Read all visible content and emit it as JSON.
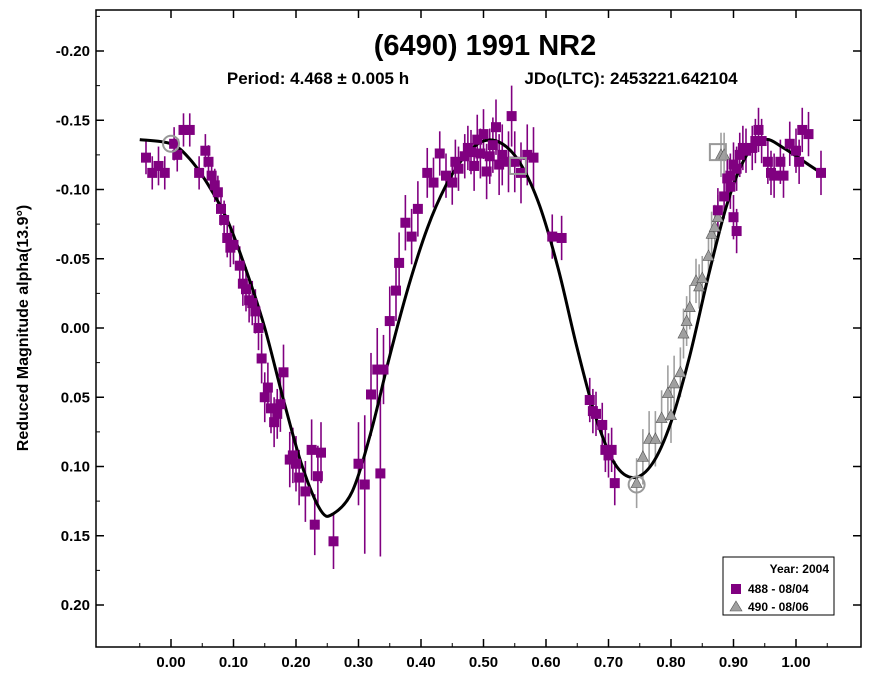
{
  "chart_data": {
    "type": "scatter",
    "title": "(6490) 1991 NR2",
    "subtitle_period": "Period: 4.468 ± 0.005 h",
    "subtitle_epoch": "JDo(LTC): 2453221.642104",
    "ylabel": "Reduced Magnitude alpha(13.9°)",
    "xlabel": "",
    "xlim": [
      -0.1,
      1.1
    ],
    "ylim": [
      0.25,
      -0.25
    ],
    "x_ticks": [
      "0.00",
      "0.10",
      "0.20",
      "0.30",
      "0.40",
      "0.50",
      "0.60",
      "0.70",
      "0.80",
      "0.90",
      "1.00"
    ],
    "y_ticks": [
      "-0.20",
      "-0.15",
      "-0.10",
      "-0.05",
      "0.00",
      "0.05",
      "0.10",
      "0.15",
      "0.20"
    ],
    "y_tick_values": [
      -0.2,
      -0.15,
      -0.1,
      -0.05,
      0.0,
      0.05,
      0.1,
      0.15,
      0.2
    ],
    "x_tick_values": [
      0.0,
      0.1,
      0.2,
      0.3,
      0.4,
      0.5,
      0.6,
      0.7,
      0.8,
      0.9,
      1.0
    ],
    "legend": {
      "title": "Year: 2004",
      "position": "bottom-right",
      "entries": [
        {
          "label": "488 - 08/04",
          "marker": "square",
          "color": "#800080"
        },
        {
          "label": "490 - 08/06",
          "marker": "triangle",
          "color": "#a0a0a0"
        }
      ]
    },
    "fit_curve": {
      "color": "#000000",
      "points": [
        [
          -0.05,
          -0.136
        ],
        [
          0.0,
          -0.133
        ],
        [
          0.03,
          -0.122
        ],
        [
          0.06,
          -0.103
        ],
        [
          0.09,
          -0.078
        ],
        [
          0.12,
          -0.042
        ],
        [
          0.15,
          0.0
        ],
        [
          0.18,
          0.052
        ],
        [
          0.21,
          0.1
        ],
        [
          0.24,
          0.132
        ],
        [
          0.26,
          0.134
        ],
        [
          0.29,
          0.118
        ],
        [
          0.32,
          0.075
        ],
        [
          0.35,
          0.02
        ],
        [
          0.38,
          -0.03
        ],
        [
          0.41,
          -0.072
        ],
        [
          0.44,
          -0.103
        ],
        [
          0.47,
          -0.124
        ],
        [
          0.5,
          -0.135
        ],
        [
          0.53,
          -0.133
        ],
        [
          0.56,
          -0.118
        ],
        [
          0.59,
          -0.088
        ],
        [
          0.62,
          -0.042
        ],
        [
          0.65,
          0.015
        ],
        [
          0.68,
          0.065
        ],
        [
          0.71,
          0.098
        ],
        [
          0.74,
          0.108
        ],
        [
          0.77,
          0.098
        ],
        [
          0.8,
          0.068
        ],
        [
          0.83,
          0.02
        ],
        [
          0.86,
          -0.038
        ],
        [
          0.89,
          -0.09
        ],
        [
          0.92,
          -0.124
        ],
        [
          0.95,
          -0.136
        ],
        [
          0.98,
          -0.13
        ],
        [
          1.02,
          -0.118
        ],
        [
          1.04,
          -0.112
        ]
      ]
    },
    "series": [
      {
        "name": "488 - 08/04",
        "marker": "square",
        "color": "#800080",
        "points": [
          [
            -0.04,
            -0.123,
            0.012
          ],
          [
            -0.03,
            -0.112,
            0.012
          ],
          [
            -0.02,
            -0.117,
            0.014
          ],
          [
            -0.01,
            -0.112,
            0.012
          ],
          [
            0.005,
            -0.133,
            0.012
          ],
          [
            0.01,
            -0.125,
            0.012
          ],
          [
            0.02,
            -0.143,
            0.012
          ],
          [
            0.03,
            -0.143,
            0.012
          ],
          [
            0.045,
            -0.112,
            0.012
          ],
          [
            0.055,
            -0.128,
            0.012
          ],
          [
            0.06,
            -0.12,
            0.012
          ],
          [
            0.065,
            -0.11,
            0.012
          ],
          [
            0.07,
            -0.103,
            0.012
          ],
          [
            0.075,
            -0.098,
            0.012
          ],
          [
            0.08,
            -0.086,
            0.012
          ],
          [
            0.085,
            -0.078,
            0.014
          ],
          [
            0.09,
            -0.065,
            0.014
          ],
          [
            0.095,
            -0.058,
            0.014
          ],
          [
            0.1,
            -0.06,
            0.014
          ],
          [
            0.11,
            -0.045,
            0.014
          ],
          [
            0.115,
            -0.032,
            0.016
          ],
          [
            0.12,
            -0.028,
            0.016
          ],
          [
            0.125,
            -0.02,
            0.016
          ],
          [
            0.13,
            -0.018,
            0.016
          ],
          [
            0.135,
            -0.012,
            0.016
          ],
          [
            0.14,
            0.0,
            0.016
          ],
          [
            0.145,
            0.022,
            0.018
          ],
          [
            0.15,
            0.05,
            0.018
          ],
          [
            0.155,
            0.043,
            0.018
          ],
          [
            0.16,
            0.058,
            0.018
          ],
          [
            0.165,
            0.068,
            0.018
          ],
          [
            0.17,
            0.062,
            0.018
          ],
          [
            0.175,
            0.055,
            0.02
          ],
          [
            0.18,
            0.032,
            0.02
          ],
          [
            0.19,
            0.095,
            0.02
          ],
          [
            0.195,
            0.092,
            0.02
          ],
          [
            0.2,
            0.098,
            0.02
          ],
          [
            0.205,
            0.108,
            0.02
          ],
          [
            0.215,
            0.118,
            0.022
          ],
          [
            0.225,
            0.088,
            0.022
          ],
          [
            0.23,
            0.142,
            0.022
          ],
          [
            0.235,
            0.107,
            0.022
          ],
          [
            0.24,
            0.09,
            0.022
          ],
          [
            0.26,
            0.154,
            0.02
          ],
          [
            0.3,
            0.098,
            0.03
          ],
          [
            0.31,
            0.113,
            0.05
          ],
          [
            0.32,
            0.048,
            0.03
          ],
          [
            0.33,
            0.03,
            0.03
          ],
          [
            0.335,
            0.105,
            0.06
          ],
          [
            0.34,
            0.03,
            0.025
          ],
          [
            0.35,
            -0.005,
            0.025
          ],
          [
            0.36,
            -0.027,
            0.022
          ],
          [
            0.365,
            -0.047,
            0.022
          ],
          [
            0.375,
            -0.076,
            0.02
          ],
          [
            0.385,
            -0.066,
            0.02
          ],
          [
            0.395,
            -0.086,
            0.02
          ],
          [
            0.41,
            -0.112,
            0.018
          ],
          [
            0.42,
            -0.105,
            0.018
          ],
          [
            0.43,
            -0.126,
            0.016
          ],
          [
            0.44,
            -0.11,
            0.016
          ],
          [
            0.45,
            -0.105,
            0.016
          ],
          [
            0.455,
            -0.12,
            0.016
          ],
          [
            0.46,
            -0.115,
            0.016
          ],
          [
            0.47,
            -0.124,
            0.016
          ],
          [
            0.475,
            -0.13,
            0.016
          ],
          [
            0.48,
            -0.127,
            0.016
          ],
          [
            0.485,
            -0.117,
            0.018
          ],
          [
            0.49,
            -0.136,
            0.018
          ],
          [
            0.495,
            -0.126,
            0.018
          ],
          [
            0.5,
            -0.14,
            0.018
          ],
          [
            0.505,
            -0.113,
            0.02
          ],
          [
            0.51,
            -0.124,
            0.02
          ],
          [
            0.515,
            -0.132,
            0.02
          ],
          [
            0.52,
            -0.145,
            0.02
          ],
          [
            0.525,
            -0.118,
            0.022
          ],
          [
            0.53,
            -0.125,
            0.022
          ],
          [
            0.54,
            -0.12,
            0.022
          ],
          [
            0.545,
            -0.153,
            0.022
          ],
          [
            0.55,
            -0.12,
            0.022
          ],
          [
            0.56,
            -0.112,
            0.022
          ],
          [
            0.57,
            -0.125,
            0.022
          ],
          [
            0.58,
            -0.123,
            0.022
          ],
          [
            0.61,
            -0.066,
            0.016
          ],
          [
            0.625,
            -0.065,
            0.016
          ],
          [
            0.67,
            0.052,
            0.016
          ],
          [
            0.675,
            0.06,
            0.016
          ],
          [
            0.68,
            0.062,
            0.016
          ],
          [
            0.69,
            0.07,
            0.016
          ],
          [
            0.695,
            0.088,
            0.016
          ],
          [
            0.7,
            0.092,
            0.016
          ],
          [
            0.705,
            0.088,
            0.016
          ],
          [
            0.71,
            0.112,
            0.016
          ]
        ]
      },
      {
        "name": "490 - 08/06",
        "marker": "triangle",
        "color": "#a0a0a0",
        "points": [
          [
            0.745,
            0.112,
            0.018
          ],
          [
            0.755,
            0.093,
            0.02
          ],
          [
            0.765,
            0.08,
            0.02
          ],
          [
            0.775,
            0.08,
            0.02
          ],
          [
            0.785,
            0.065,
            0.02
          ],
          [
            0.795,
            0.047,
            0.02
          ],
          [
            0.8,
            0.063,
            0.02
          ],
          [
            0.805,
            0.04,
            0.02
          ],
          [
            0.815,
            0.032,
            0.018
          ],
          [
            0.82,
            0.004,
            0.018
          ],
          [
            0.825,
            -0.005,
            0.018
          ],
          [
            0.83,
            -0.015,
            0.016
          ],
          [
            0.84,
            -0.034,
            0.016
          ],
          [
            0.845,
            -0.03,
            0.016
          ],
          [
            0.85,
            -0.036,
            0.016
          ],
          [
            0.86,
            -0.052,
            0.016
          ],
          [
            0.865,
            -0.068,
            0.016
          ],
          [
            0.87,
            -0.073,
            0.016
          ],
          [
            0.875,
            -0.08,
            0.016
          ],
          [
            0.88,
            -0.125,
            0.016
          ],
          [
            0.885,
            -0.125,
            0.016
          ]
        ]
      },
      {
        "name": "488 - 08/04 (continued)",
        "marker": "square",
        "color": "#800080",
        "points": [
          [
            0.875,
            -0.085,
            0.016
          ],
          [
            0.885,
            -0.095,
            0.016
          ],
          [
            0.89,
            -0.108,
            0.016
          ],
          [
            0.895,
            -0.11,
            0.016
          ],
          [
            0.9,
            -0.118,
            0.016
          ],
          [
            0.905,
            -0.115,
            0.016
          ],
          [
            0.91,
            -0.125,
            0.016
          ],
          [
            0.915,
            -0.13,
            0.016
          ],
          [
            0.92,
            -0.128,
            0.016
          ],
          [
            0.93,
            -0.13,
            0.016
          ],
          [
            0.935,
            -0.135,
            0.016
          ],
          [
            0.94,
            -0.143,
            0.016
          ],
          [
            0.945,
            -0.135,
            0.016
          ],
          [
            0.955,
            -0.12,
            0.016
          ],
          [
            0.96,
            -0.112,
            0.016
          ],
          [
            0.965,
            -0.11,
            0.016
          ],
          [
            0.975,
            -0.12,
            0.016
          ],
          [
            0.98,
            -0.11,
            0.016
          ],
          [
            0.99,
            -0.133,
            0.016
          ],
          [
            1.0,
            -0.128,
            0.016
          ],
          [
            1.005,
            -0.12,
            0.016
          ],
          [
            1.01,
            -0.143,
            0.016
          ],
          [
            1.02,
            -0.14,
            0.016
          ],
          [
            1.04,
            -0.112,
            0.016
          ],
          [
            0.895,
            -0.102,
            0.016
          ],
          [
            0.9,
            -0.08,
            0.016
          ],
          [
            0.905,
            -0.07,
            0.016
          ]
        ]
      }
    ],
    "highlighted_markers": [
      {
        "x": 0.0,
        "y": -0.133,
        "shape": "circle"
      },
      {
        "x": 0.555,
        "y": -0.117,
        "shape": "square"
      },
      {
        "x": 0.745,
        "y": 0.113,
        "shape": "circle"
      },
      {
        "x": 0.875,
        "y": -0.127,
        "shape": "square"
      }
    ]
  }
}
